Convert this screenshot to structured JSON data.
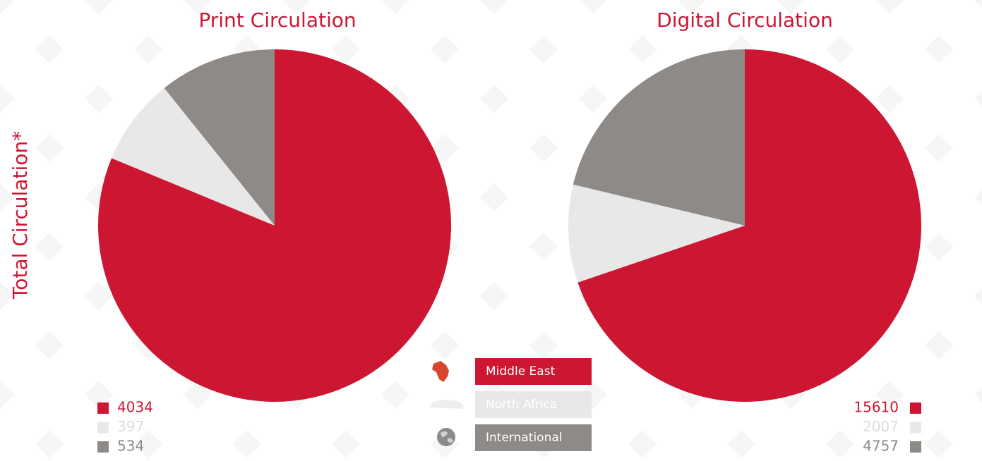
{
  "axis_label": "Total Circulation*",
  "legend": [
    "Middle East",
    "North Africa",
    "International"
  ],
  "chart_data": [
    {
      "type": "pie",
      "title": "Print Circulation",
      "values": [
        4034,
        397,
        534
      ],
      "colors": [
        "#cc1632",
        "#e8e8e8",
        "#8e8a87"
      ]
    },
    {
      "type": "pie",
      "title": "Digital Circulation",
      "values": [
        15610,
        2007,
        4757
      ],
      "colors": [
        "#cc1632",
        "#e8e8e8",
        "#8e8a87"
      ]
    }
  ]
}
